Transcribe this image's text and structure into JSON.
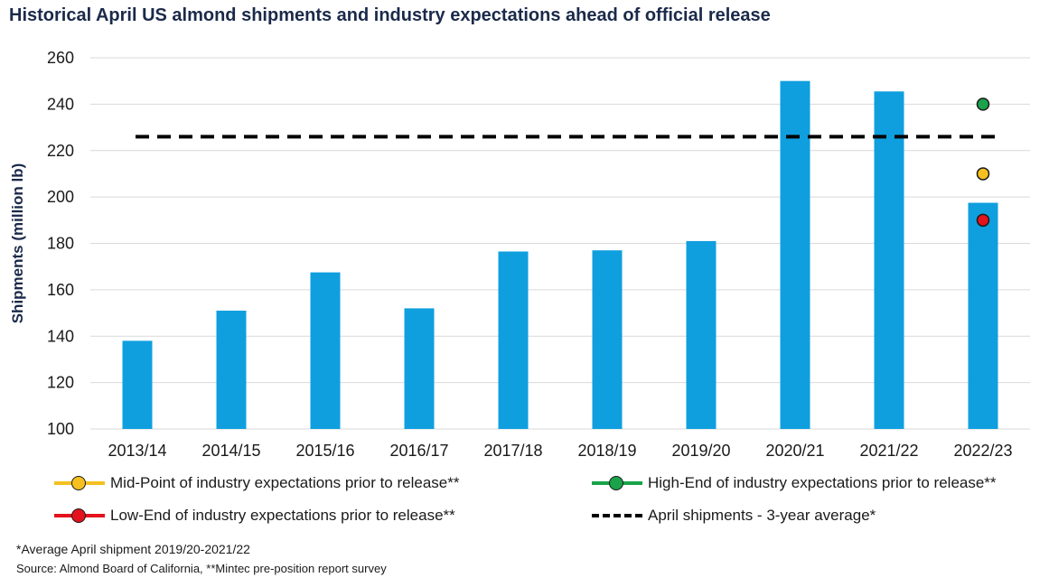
{
  "title": "Historical April US almond shipments and industry expectations ahead of official release",
  "chart_data": {
    "type": "bar",
    "categories": [
      "2013/14",
      "2014/15",
      "2015/16",
      "2016/17",
      "2017/18",
      "2018/19",
      "2019/20",
      "2020/21",
      "2021/22",
      "2022/23"
    ],
    "values": [
      138,
      151,
      167.5,
      152,
      176.5,
      177,
      181,
      250,
      245.5,
      197.5
    ],
    "ylabel": "Shipments (million lb)",
    "ylim": [
      100,
      260
    ],
    "yticks": [
      100,
      120,
      140,
      160,
      180,
      200,
      220,
      240,
      260
    ],
    "grid": true,
    "bar_color": "#0f9fdf",
    "average_line": {
      "name": "April shipments - 3-year average*",
      "value": 226,
      "color": "#000000"
    },
    "expectations": {
      "category": "2022/23",
      "points": [
        {
          "name": "High-End of industry expectations prior to release**",
          "value": 240,
          "color": "#1aa34a"
        },
        {
          "name": "Mid-Point of industry expectations prior to release**",
          "value": 210,
          "color": "#f5c020"
        },
        {
          "name": "Low-End of industry expectations prior to release**",
          "value": 190,
          "color": "#e3121c"
        }
      ]
    }
  },
  "legend": {
    "mid": {
      "label": "Mid-Point of industry expectations prior to release**",
      "color": "#f5c020"
    },
    "high": {
      "label": "High-End of industry expectations prior to release**",
      "color": "#1aa34a"
    },
    "low": {
      "label": "Low-End of industry expectations prior to release**",
      "color": "#e3121c"
    },
    "avg": {
      "label": "April shipments - 3-year average*"
    }
  },
  "footnotes": {
    "note": "*Average April shipment 2019/20-2021/22",
    "source": "Source: Almond Board of California, **Mintec pre-position report survey"
  }
}
